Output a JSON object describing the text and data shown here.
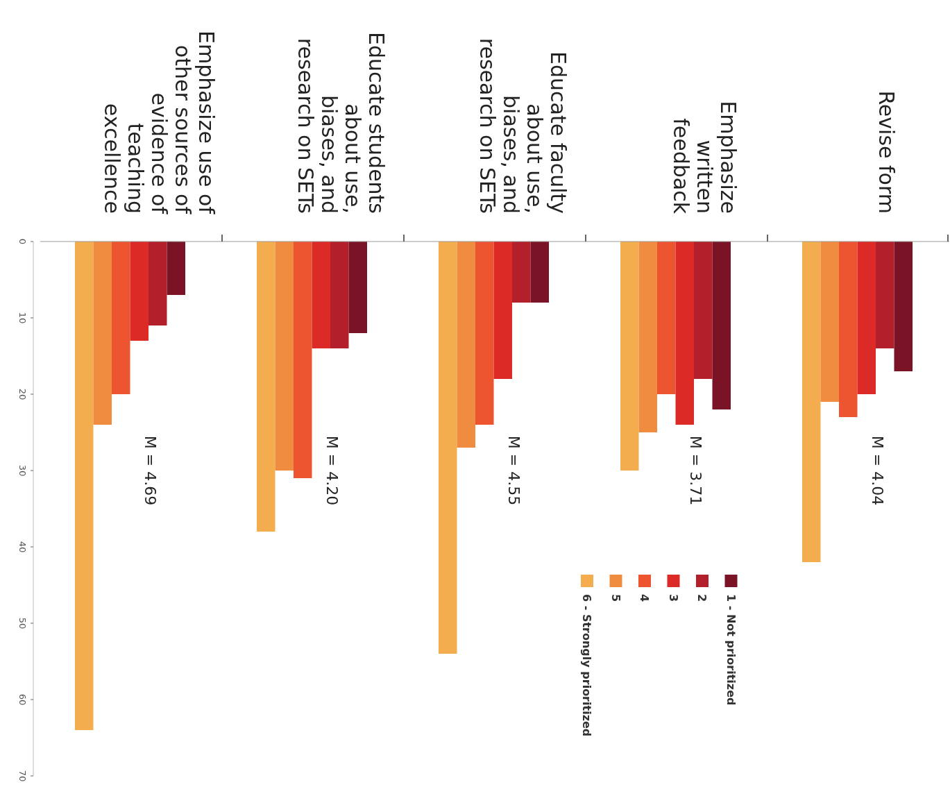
{
  "chart_data": {
    "type": "bar",
    "categories": [
      "Emphasize use of\nother sources of\nevidence of\nteaching\nexcellence",
      "Educate students\nabout use,\nbiases, and\nresearch on SETs",
      "Educate faculty\nabout use,\nbiases, and\nresearch on SETs",
      "Emphasize\nwritten\nfeedback",
      "Revise form"
    ],
    "series": [
      {
        "name": "6 - Strongly prioritized",
        "color": "#f4ad4e",
        "values": [
          64,
          38,
          54,
          30,
          42
        ]
      },
      {
        "name": "5",
        "color": "#f08c3f",
        "values": [
          24,
          30,
          27,
          25,
          21
        ]
      },
      {
        "name": "4",
        "color": "#ec5530",
        "values": [
          20,
          31,
          24,
          20,
          23
        ]
      },
      {
        "name": "3",
        "color": "#dc2a26",
        "values": [
          13,
          14,
          18,
          24,
          20
        ]
      },
      {
        "name": "2",
        "color": "#b31f2a",
        "values": [
          11,
          14,
          8,
          18,
          14
        ]
      },
      {
        "name": "1 - Not prioritized",
        "color": "#7a1326",
        "values": [
          7,
          12,
          8,
          22,
          17
        ]
      }
    ],
    "ylim": [
      70,
      0
    ],
    "yticks": [
      0,
      10,
      20,
      30,
      40,
      50,
      60,
      70
    ],
    "annotations": [
      "M = 4.69",
      "M = 4.20",
      "M = 4.55",
      "M = 3.71",
      "M = 4.04"
    ],
    "legend": "bottom right"
  }
}
